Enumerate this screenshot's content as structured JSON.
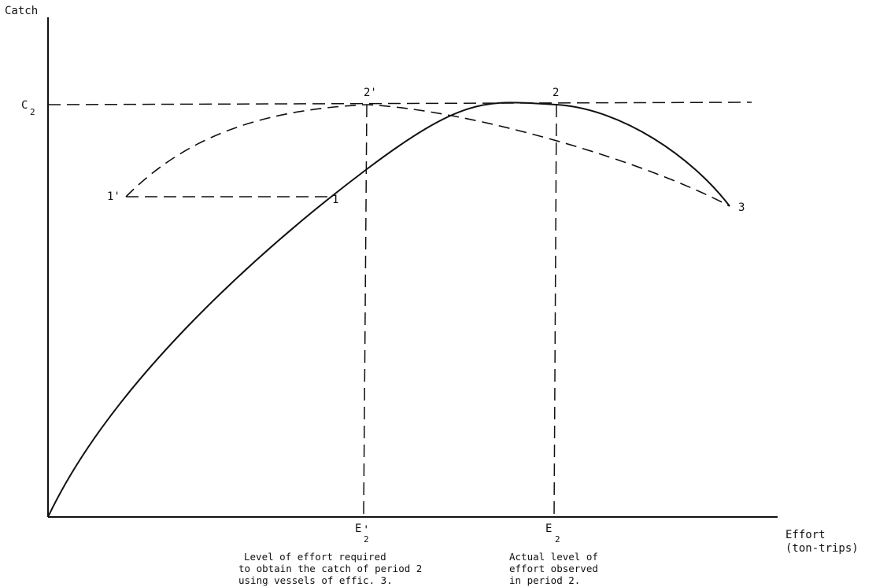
{
  "axes": {
    "y_label": "Catch",
    "x_label_line1": "Effort",
    "x_label_line2": "(ton-trips)"
  },
  "ticks": {
    "c2_main": "C",
    "c2_sub": "2",
    "e2prime_main": "E",
    "e2prime_sub": "2",
    "e2prime_mark": "'",
    "e2_main": "E",
    "e2_sub": "2"
  },
  "points": {
    "p1": "1",
    "p1prime": "1'",
    "p2": "2",
    "p2prime": "2'",
    "p3": "3"
  },
  "notes": {
    "required_line1": "Level of effort required",
    "required_line2": "to obtain the catch of period 2",
    "required_line3": "using vessels of effic. 3.",
    "actual_line1": "Actual level of",
    "actual_line2": "effort observed",
    "actual_line3": "in period 2."
  }
}
